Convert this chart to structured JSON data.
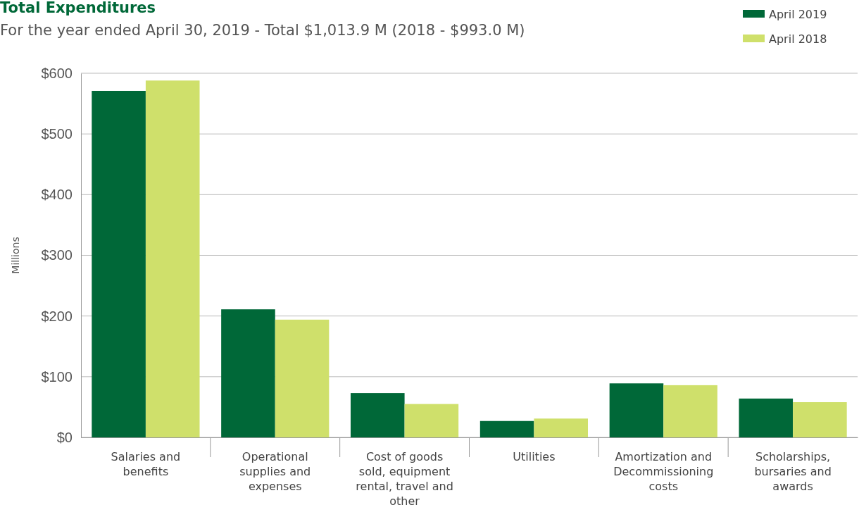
{
  "chart_data": {
    "type": "bar",
    "title": "Total Expenditures",
    "subtitle": "For the year ended April 30, 2019 - Total $1,013.9 M (2018 - $993.0 M)",
    "ylabel": "Millions",
    "categories": [
      "Salaries and benefits",
      "Operational supplies and expenses",
      "Cost of goods sold, equipment rental, travel and other",
      "Utilities",
      "Amortization and Decommissioning costs",
      "Scholarships, bursaries and awards"
    ],
    "series": [
      {
        "name": "April 2019",
        "color": "#006838",
        "values": [
          571,
          211,
          73,
          27,
          89,
          64
        ]
      },
      {
        "name": "April 2018",
        "color": "#cfe06b",
        "values": [
          588,
          194,
          55,
          31,
          86,
          58
        ]
      }
    ],
    "ylim": [
      0,
      600
    ],
    "yticks": [
      {
        "value": 0,
        "label": "$0"
      },
      {
        "value": 100,
        "label": "$100"
      },
      {
        "value": 200,
        "label": "$200"
      },
      {
        "value": 300,
        "label": "$300"
      },
      {
        "value": 400,
        "label": "$400"
      },
      {
        "value": 500,
        "label": "$500"
      },
      {
        "value": 600,
        "label": "$600"
      }
    ],
    "grid": "y",
    "legend": "top right"
  }
}
